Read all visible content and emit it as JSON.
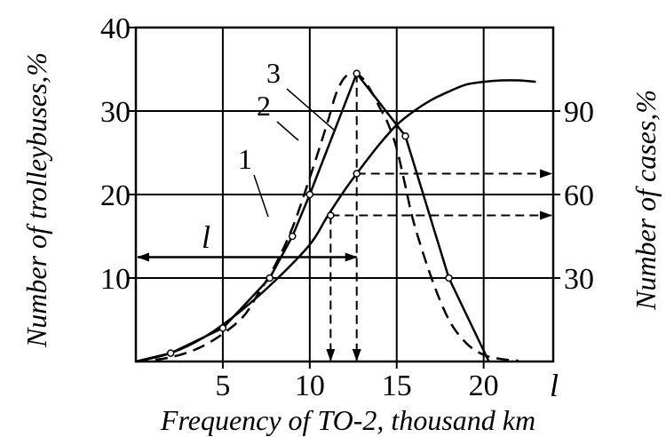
{
  "chart_data": {
    "type": "line",
    "xlabel": "Frequency of TO-2, thousand km",
    "ylabel_left": "Number of trolleybuses,%",
    "ylabel_right": "Number of cases,%",
    "x_end_label": "l",
    "l_label": "l",
    "xlim": [
      0,
      24
    ],
    "ylim_left": [
      0,
      40
    ],
    "ylim_right": [
      0,
      120
    ],
    "x_ticks": [
      5,
      10,
      15,
      20
    ],
    "y_ticks_left": [
      10,
      20,
      30,
      40
    ],
    "y_ticks_right": [
      30,
      60,
      90
    ],
    "grid": true,
    "series_labels": [
      "1",
      "2",
      "3"
    ],
    "series": [
      {
        "name": "1",
        "style": "dashed",
        "axis": "left",
        "x": [
          0,
          2,
          4,
          6,
          7,
          8,
          9,
          10,
          11,
          11.5,
          12,
          12.5,
          13,
          13.5,
          14,
          14.5,
          15,
          15.5,
          16,
          17,
          18,
          19,
          20,
          21,
          22
        ],
        "y": [
          0,
          0.5,
          2,
          5,
          8,
          11.5,
          16,
          22,
          28.5,
          32,
          34,
          34.5,
          34,
          32.5,
          30.5,
          28.5,
          25.5,
          21,
          16.5,
          10,
          5,
          2.2,
          0.8,
          0.3,
          0.1
        ]
      },
      {
        "name": "2",
        "style": "solid",
        "axis": "left",
        "x": [
          0,
          2,
          5,
          7.7,
          9,
          10,
          12.7,
          15.5,
          18,
          20.3
        ],
        "y": [
          0,
          1,
          4,
          10,
          15,
          20,
          34.5,
          27,
          10,
          0
        ]
      },
      {
        "name": "3",
        "style": "solid",
        "axis": "right",
        "x": [
          0,
          2,
          4,
          6,
          8,
          10,
          11,
          12,
          13,
          14,
          15,
          16,
          17,
          18,
          19,
          20,
          21,
          22,
          23
        ],
        "y": [
          0,
          3,
          9,
          18,
          29,
          42,
          52,
          61.5,
          70,
          78,
          85,
          90,
          94,
          97,
          99.5,
          100.5,
          101,
          101,
          100.5
        ]
      }
    ],
    "markers_series_2": [
      {
        "x": 2,
        "y": 1
      },
      {
        "x": 5,
        "y": 4
      },
      {
        "x": 7.7,
        "y": 10
      },
      {
        "x": 9,
        "y": 15
      },
      {
        "x": 10,
        "y": 20
      },
      {
        "x": 12.7,
        "y": 34.5
      },
      {
        "x": 15.5,
        "y": 27
      },
      {
        "x": 18,
        "y": 10
      }
    ],
    "markers_series_3": [
      {
        "x": 11.2,
        "y": 52.5
      },
      {
        "x": 12.7,
        "y": 67.5
      }
    ],
    "reference_lines": {
      "l_span": {
        "from": 0,
        "to": 12.7,
        "y": 12.5
      },
      "drop_1": {
        "x": 11.2,
        "y_right": 52.5
      },
      "drop_2": {
        "x": 12.7,
        "y_left": 34.5
      },
      "arrow_60": {
        "from_x": 11.2,
        "y_right": 52.5
      },
      "arrow_68": {
        "from_x": 12.7,
        "y_right": 67.5
      }
    }
  }
}
